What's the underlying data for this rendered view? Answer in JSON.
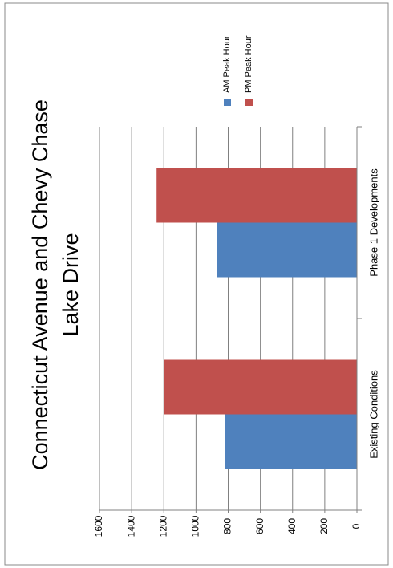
{
  "chart_data": {
    "type": "bar",
    "orientation": "rotated-90-ccw",
    "title_lines": [
      "Connecticut Avenue and Chevy Chase",
      "Lake Drive"
    ],
    "categories": [
      "Existing Conditions",
      "Phase 1 Developments"
    ],
    "series": [
      {
        "name": "AM Peak Hour",
        "values": [
          820,
          870
        ],
        "color": "#4F81BD"
      },
      {
        "name": "PM Peak Hour",
        "values": [
          1200,
          1245
        ],
        "color": "#C0504D"
      }
    ],
    "ylim": [
      0,
      1600
    ],
    "yticks": [
      "0",
      "200",
      "400",
      "600",
      "800",
      "1000",
      "1200",
      "1400",
      "1600"
    ],
    "grid": true,
    "legend_position": "right"
  }
}
